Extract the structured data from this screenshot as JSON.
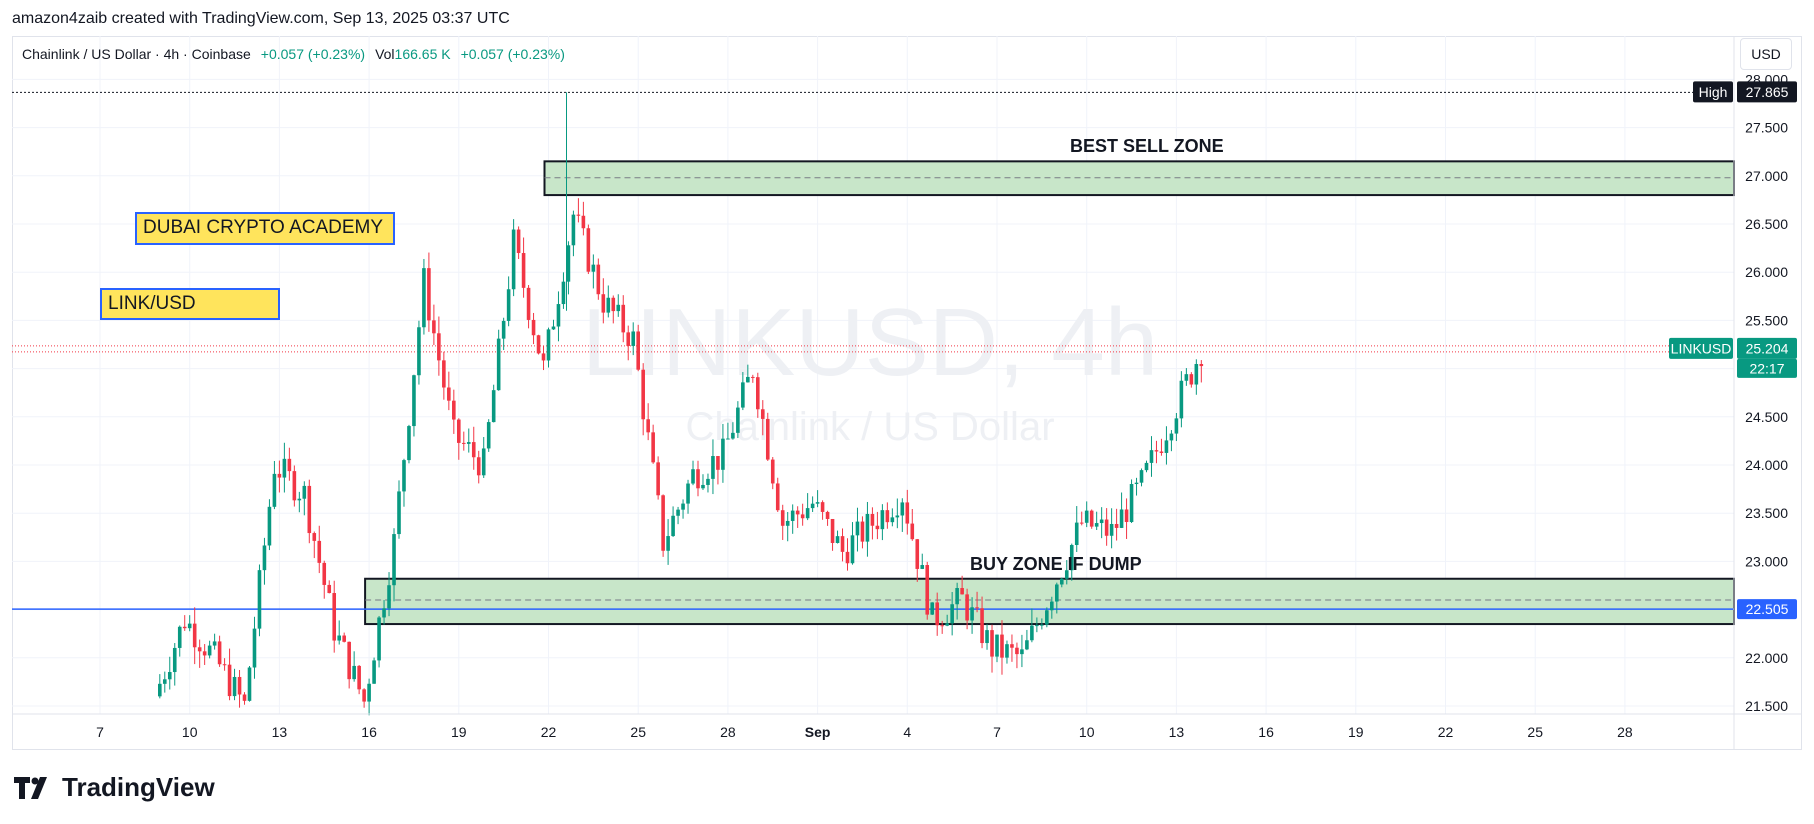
{
  "header": {
    "attribution": "amazon4zaib created with TradingView.com, Sep 13, 2025 03:37 UTC"
  },
  "legend": {
    "symbol": "Chainlink / US Dollar · 4h · Coinbase",
    "change": "+0.057 (+0.23%)",
    "vol_label": "Vol",
    "vol_value": "166.65 K",
    "vol_change": "+0.057 (+0.23%)"
  },
  "currency": "USD",
  "watermark": {
    "main": "LINKUSD, 4h",
    "sub": "Chainlink / US Dollar"
  },
  "annotations": {
    "academy": "DUBAI CRYPTO ACADEMY",
    "pair": "LINK/USD",
    "sell_zone": "BEST SELL ZONE",
    "buy_zone": "BUY ZONE IF DUMP"
  },
  "price_labels": {
    "high_tag": "High",
    "high_value": "27.865",
    "symbol_tag": "LINKUSD",
    "last_value": "25.204",
    "countdown": "22:17",
    "hline_value": "22.505"
  },
  "colors": {
    "up": "#089981",
    "down": "#f23645",
    "zone_fill": "#c8e6c9",
    "hline": "#2962ff",
    "yellow": "#ffe45c"
  },
  "footer": {
    "brand": "TradingView"
  },
  "chart_data": {
    "type": "candlestick",
    "symbol": "LINKUSD",
    "interval": "4h",
    "exchange": "Coinbase",
    "y_axis": {
      "range": [
        21.45,
        28.1
      ],
      "ticks": [
        "21.500",
        "22.000",
        "22.500",
        "23.000",
        "23.500",
        "24.000",
        "24.500",
        "25.000",
        "25.500",
        "26.000",
        "26.500",
        "27.000",
        "27.500",
        "28.000"
      ]
    },
    "x_axis": {
      "ticks": [
        "7",
        "10",
        "13",
        "16",
        "19",
        "22",
        "25",
        "28",
        "Sep",
        "4",
        "7",
        "10",
        "13",
        "16",
        "19",
        "22",
        "25",
        "28"
      ]
    },
    "first_bar_date": "Aug 9",
    "zones": [
      {
        "name": "BEST SELL ZONE",
        "top": 27.15,
        "bottom": 26.8,
        "mid": 26.98,
        "start": "Aug 22"
      },
      {
        "name": "BUY ZONE IF DUMP",
        "top": 22.82,
        "bottom": 22.35,
        "mid": 22.6,
        "start": "Aug 16"
      }
    ],
    "horizontal_lines": [
      {
        "value": 22.505
      }
    ],
    "high": 27.865,
    "last": 25.204,
    "anchors": [
      [
        "Aug 9",
        21.6
      ],
      [
        "Aug 10",
        22.4
      ],
      [
        "Aug 11",
        22.0
      ],
      [
        "Aug 12",
        21.5
      ],
      [
        "Aug 13",
        24.0
      ],
      [
        "Aug 14",
        23.7
      ],
      [
        "Aug 15",
        22.3
      ],
      [
        "Aug 16",
        21.55
      ],
      [
        "Aug 17",
        23.2
      ],
      [
        "Aug 18",
        25.9
      ],
      [
        "Aug 19",
        24.3
      ],
      [
        "Aug 20",
        24.0
      ],
      [
        "Aug 21",
        26.3
      ],
      [
        "Aug 22",
        25.0
      ],
      [
        "Aug 23",
        26.6
      ],
      [
        "Aug 24",
        25.7
      ],
      [
        "Aug 25",
        25.3
      ],
      [
        "Aug 26",
        23.2
      ],
      [
        "Aug 27",
        23.9
      ],
      [
        "Aug 28",
        24.1
      ],
      [
        "Aug 29",
        25.0
      ],
      [
        "Aug 30",
        23.4
      ],
      [
        "Aug 31",
        23.6
      ],
      [
        "Sep 1",
        23.1
      ],
      [
        "Sep 2",
        23.4
      ],
      [
        "Sep 3",
        23.7
      ],
      [
        "Sep 4",
        22.4
      ],
      [
        "Sep 5",
        22.6
      ],
      [
        "Sep 6",
        22.1
      ],
      [
        "Sep 7",
        22.0
      ],
      [
        "Sep 8",
        22.7
      ],
      [
        "Sep 9",
        23.4
      ],
      [
        "Sep 10",
        23.3
      ],
      [
        "Sep 11",
        23.8
      ],
      [
        "Sep 12",
        24.5
      ],
      [
        "Sep 13",
        25.2
      ]
    ]
  }
}
